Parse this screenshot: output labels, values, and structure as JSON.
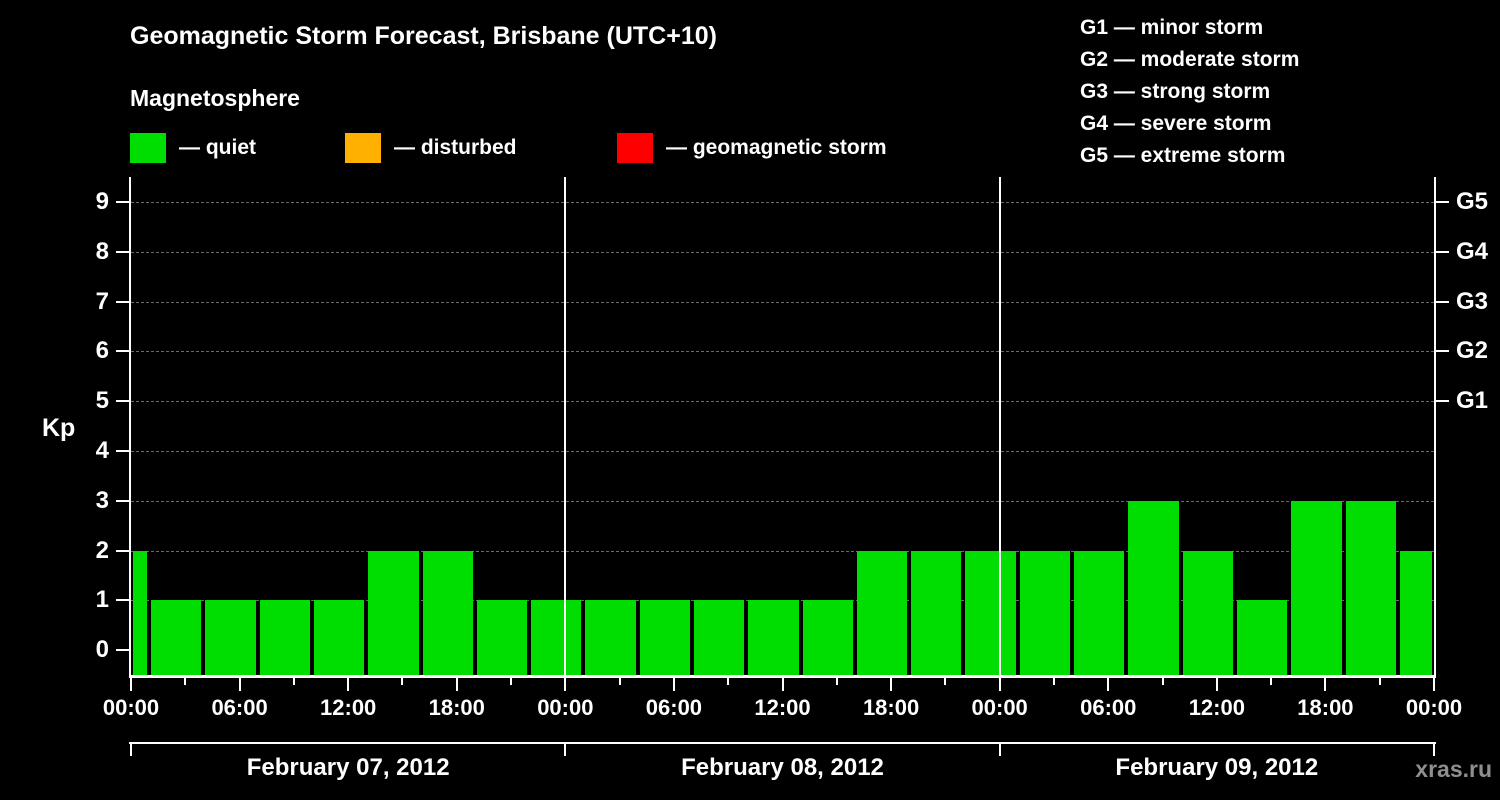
{
  "title": "Geomagnetic Storm Forecast, Brisbane (UTC+10)",
  "subtitle": "Magnetosphere",
  "legend": {
    "items": [
      {
        "label": "— quiet",
        "color": "#00dd00"
      },
      {
        "label": "— disturbed",
        "color": "#ffb000"
      },
      {
        "label": "— geomagnetic storm",
        "color": "#ff0000"
      }
    ]
  },
  "storm_scale": [
    "G1 — minor storm",
    "G2 — moderate storm",
    "G3 — strong storm",
    "G4 — severe storm",
    "G5 — extreme storm"
  ],
  "watermark": "xras.ru",
  "chart_data": {
    "type": "bar",
    "title": "Geomagnetic Storm Forecast, Brisbane (UTC+10)",
    "ylabel": "Kp",
    "ylim": [
      -0.5,
      9.5
    ],
    "yticks": [
      0,
      1,
      2,
      3,
      4,
      5,
      6,
      7,
      8,
      9
    ],
    "right_axis": [
      {
        "label": "G1",
        "kp": 5
      },
      {
        "label": "G2",
        "kp": 6
      },
      {
        "label": "G3",
        "kp": 7
      },
      {
        "label": "G4",
        "kp": 8
      },
      {
        "label": "G5",
        "kp": 9
      }
    ],
    "grid": "dashed horizontal lines at integer Kp values",
    "legend_position": "top",
    "total_hours": 72,
    "minor_tick_step_hours": 3,
    "xticks": [
      {
        "hour": 0,
        "label": "00:00"
      },
      {
        "hour": 6,
        "label": "06:00"
      },
      {
        "hour": 12,
        "label": "12:00"
      },
      {
        "hour": 18,
        "label": "18:00"
      },
      {
        "hour": 24,
        "label": "00:00"
      },
      {
        "hour": 30,
        "label": "06:00"
      },
      {
        "hour": 36,
        "label": "12:00"
      },
      {
        "hour": 42,
        "label": "18:00"
      },
      {
        "hour": 48,
        "label": "00:00"
      },
      {
        "hour": 54,
        "label": "06:00"
      },
      {
        "hour": 60,
        "label": "12:00"
      },
      {
        "hour": 66,
        "label": "18:00"
      },
      {
        "hour": 72,
        "label": "00:00"
      }
    ],
    "day_boundaries_hours": [
      24,
      48
    ],
    "days": [
      {
        "label": "February 07, 2012",
        "start_hour": 0,
        "end_hour": 24
      },
      {
        "label": "February 08, 2012",
        "start_hour": 24,
        "end_hour": 48
      },
      {
        "label": "February 09, 2012",
        "start_hour": 48,
        "end_hour": 72
      }
    ],
    "bars": [
      {
        "start_hour": 0,
        "end_hour": 1,
        "kp": 2
      },
      {
        "start_hour": 1,
        "end_hour": 4,
        "kp": 1
      },
      {
        "start_hour": 4,
        "end_hour": 7,
        "kp": 1
      },
      {
        "start_hour": 7,
        "end_hour": 10,
        "kp": 1
      },
      {
        "start_hour": 10,
        "end_hour": 13,
        "kp": 1
      },
      {
        "start_hour": 13,
        "end_hour": 16,
        "kp": 2
      },
      {
        "start_hour": 16,
        "end_hour": 19,
        "kp": 2
      },
      {
        "start_hour": 19,
        "end_hour": 22,
        "kp": 1
      },
      {
        "start_hour": 22,
        "end_hour": 25,
        "kp": 1
      },
      {
        "start_hour": 25,
        "end_hour": 28,
        "kp": 1
      },
      {
        "start_hour": 28,
        "end_hour": 31,
        "kp": 1
      },
      {
        "start_hour": 31,
        "end_hour": 34,
        "kp": 1
      },
      {
        "start_hour": 34,
        "end_hour": 37,
        "kp": 1
      },
      {
        "start_hour": 37,
        "end_hour": 40,
        "kp": 1
      },
      {
        "start_hour": 40,
        "end_hour": 43,
        "kp": 2
      },
      {
        "start_hour": 43,
        "end_hour": 46,
        "kp": 2
      },
      {
        "start_hour": 46,
        "end_hour": 49,
        "kp": 2
      },
      {
        "start_hour": 49,
        "end_hour": 52,
        "kp": 2
      },
      {
        "start_hour": 52,
        "end_hour": 55,
        "kp": 2
      },
      {
        "start_hour": 55,
        "end_hour": 58,
        "kp": 3
      },
      {
        "start_hour": 58,
        "end_hour": 61,
        "kp": 2
      },
      {
        "start_hour": 61,
        "end_hour": 64,
        "kp": 1
      },
      {
        "start_hour": 64,
        "end_hour": 67,
        "kp": 3
      },
      {
        "start_hour": 67,
        "end_hour": 70,
        "kp": 3
      },
      {
        "start_hour": 70,
        "end_hour": 72,
        "kp": 2
      }
    ]
  }
}
